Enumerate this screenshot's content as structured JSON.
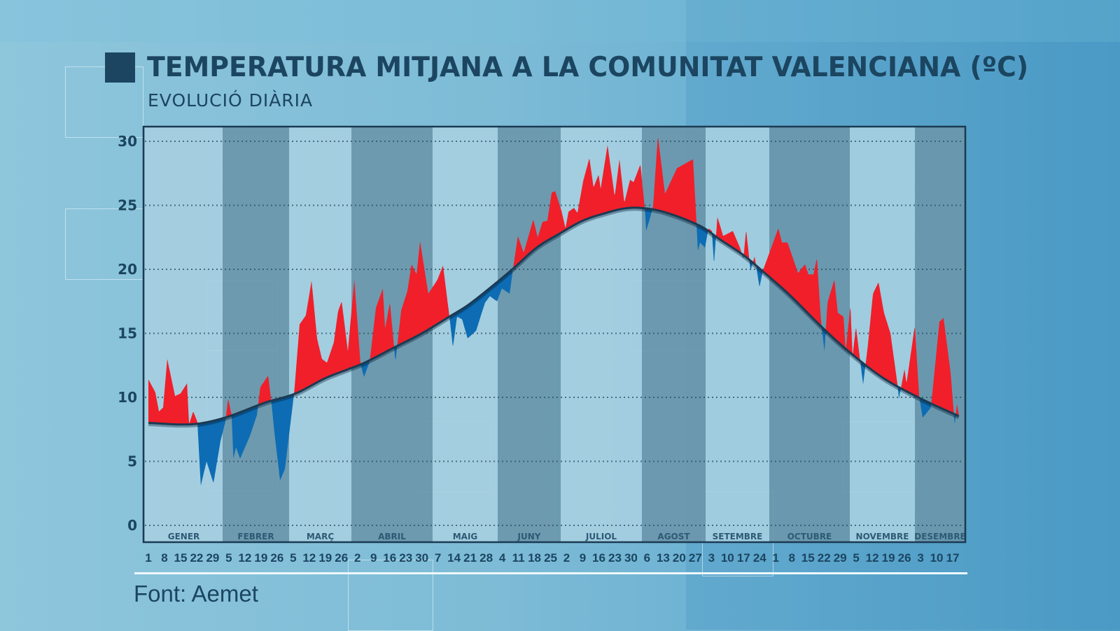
{
  "header": {
    "title": "TEMPERATURA MITJANA A LA COMUNITAT VALENCIANA (ºC)",
    "subtitle": "EVOLUCIÓ DIÀRIA"
  },
  "footer": {
    "source": "Font: Aemet"
  },
  "colors": {
    "above_normal": "#f01f2a",
    "below_normal": "#0d6cb3",
    "normal_line": "#1b3a52",
    "band_light": "#a6cfe1",
    "band_dark": "#6b97ab",
    "text": "#1b4560"
  },
  "chart_data": {
    "type": "area",
    "title": "TEMPERATURA MITJANA A LA COMUNITAT VALENCIANA (ºC)",
    "subtitle": "EVOLUCIÓ DIÀRIA",
    "xlabel": "",
    "ylabel": "",
    "ylim": [
      0,
      30
    ],
    "yticks": [
      0,
      5,
      10,
      15,
      20,
      25,
      30
    ],
    "grid": "horizontal-dotted",
    "x_unit": "day of year",
    "months": [
      "GENER",
      "FEBRER",
      "MARÇ",
      "ABRIL",
      "MAIG",
      "JUNY",
      "JULIOL",
      "AGOST",
      "SETEMBRE",
      "OCTUBRE",
      "NOVEMBRE",
      "DESEMBRE"
    ],
    "xtick_labels": [
      "1",
      "8",
      "15",
      "22",
      "29",
      "5",
      "12",
      "19",
      "26",
      "5",
      "12",
      "19",
      "26",
      "2",
      "9",
      "16",
      "23",
      "30",
      "7",
      "14",
      "21",
      "28",
      "4",
      "11",
      "18",
      "25",
      "2",
      "9",
      "16",
      "23",
      "30",
      "6",
      "13",
      "20",
      "27",
      "3",
      "10",
      "17",
      "24",
      "1",
      "8",
      "15",
      "22",
      "29",
      "5",
      "12",
      "19",
      "26",
      "3",
      "10",
      "17"
    ],
    "xtick_days": [
      1,
      8,
      15,
      22,
      29,
      36,
      43,
      50,
      57,
      64,
      71,
      78,
      85,
      92,
      99,
      106,
      113,
      120,
      127,
      134,
      141,
      148,
      155,
      162,
      169,
      176,
      183,
      190,
      197,
      204,
      211,
      218,
      225,
      232,
      239,
      246,
      253,
      260,
      267,
      274,
      281,
      288,
      295,
      302,
      309,
      316,
      323,
      330,
      337,
      344,
      351
    ],
    "series": [
      {
        "role": "observed daily mean",
        "points": [
          [
            1,
            11.4
          ],
          [
            4,
            10.4
          ],
          [
            5.6,
            8.9
          ],
          [
            7.4,
            9.2
          ],
          [
            9.2,
            13.0
          ],
          [
            12.6,
            10.1
          ],
          [
            15,
            10.3
          ],
          [
            17.8,
            11.1
          ],
          [
            18.7,
            7.9
          ],
          [
            20.5,
            8.9
          ],
          [
            22.3,
            8.1
          ],
          [
            23.8,
            3.1
          ],
          [
            26.3,
            5.0
          ],
          [
            29.3,
            3.3
          ],
          [
            32.4,
            6.6
          ],
          [
            34.5,
            8.1
          ],
          [
            35.7,
            9.9
          ],
          [
            37.2,
            8.6
          ],
          [
            38,
            5.2
          ],
          [
            39.1,
            6.1
          ],
          [
            40.9,
            5.2
          ],
          [
            45.2,
            7.0
          ],
          [
            48.2,
            8.6
          ],
          [
            49.7,
            10.8
          ],
          [
            53.1,
            11.7
          ],
          [
            54.6,
            9.5
          ],
          [
            55.8,
            7.3
          ],
          [
            58.3,
            3.5
          ],
          [
            60.4,
            4.4
          ],
          [
            64.4,
            10.3
          ],
          [
            66.8,
            15.7
          ],
          [
            69.5,
            16.4
          ],
          [
            72,
            19.1
          ],
          [
            74.4,
            14.6
          ],
          [
            76.5,
            13.0
          ],
          [
            78.7,
            12.7
          ],
          [
            81.7,
            14.3
          ],
          [
            83.5,
            16.7
          ],
          [
            85.1,
            17.5
          ],
          [
            87.8,
            13.6
          ],
          [
            90.6,
            19.2
          ],
          [
            93.3,
            12.6
          ],
          [
            94.8,
            11.6
          ],
          [
            97.3,
            12.8
          ],
          [
            100,
            17.0
          ],
          [
            103,
            18.5
          ],
          [
            104,
            15.4
          ],
          [
            106.1,
            17.4
          ],
          [
            108.5,
            12.8
          ],
          [
            111,
            16.8
          ],
          [
            113.7,
            18.3
          ],
          [
            115.5,
            20.4
          ],
          [
            117.7,
            19.6
          ],
          [
            119.2,
            22.2
          ],
          [
            122.8,
            18.1
          ],
          [
            126.8,
            19.2
          ],
          [
            129.2,
            20.3
          ],
          [
            132,
            16.3
          ],
          [
            133.5,
            13.9
          ],
          [
            135.3,
            16.3
          ],
          [
            137.5,
            16.1
          ],
          [
            139.9,
            14.6
          ],
          [
            143.6,
            15.2
          ],
          [
            145.7,
            16.4
          ],
          [
            147.5,
            17.4
          ],
          [
            149.6,
            17.9
          ],
          [
            152.7,
            17.5
          ],
          [
            154.8,
            18.5
          ],
          [
            158.2,
            18.1
          ],
          [
            159.7,
            20.1
          ],
          [
            161.8,
            22.6
          ],
          [
            164.3,
            21.3
          ],
          [
            168.5,
            23.9
          ],
          [
            170.4,
            22.5
          ],
          [
            172.5,
            23.7
          ],
          [
            174.6,
            23.8
          ],
          [
            176.5,
            26.0
          ],
          [
            178,
            26.1
          ],
          [
            180.7,
            24.6
          ],
          [
            182.5,
            23.2
          ],
          [
            183.8,
            24.5
          ],
          [
            186.2,
            24.8
          ],
          [
            187.7,
            24.4
          ],
          [
            190.2,
            26.9
          ],
          [
            192.9,
            28.7
          ],
          [
            194.7,
            26.4
          ],
          [
            196.9,
            27.4
          ],
          [
            197.8,
            26.3
          ],
          [
            200.8,
            29.7
          ],
          [
            203.9,
            25.7
          ],
          [
            206,
            28.6
          ],
          [
            208.1,
            25.2
          ],
          [
            210.6,
            27.0
          ],
          [
            212.1,
            26.8
          ],
          [
            215.1,
            28.2
          ],
          [
            217.1,
            24.6
          ],
          [
            217.6,
            23.0
          ],
          [
            219.1,
            23.9
          ],
          [
            220.6,
            24.9
          ],
          [
            222.7,
            30.4
          ],
          [
            225.8,
            25.9
          ],
          [
            231,
            27.9
          ],
          [
            234,
            28.2
          ],
          [
            238,
            28.6
          ],
          [
            239.5,
            23.6
          ],
          [
            240.1,
            21.4
          ],
          [
            241,
            22.1
          ],
          [
            243.2,
            21.7
          ],
          [
            244.7,
            23.2
          ],
          [
            246.2,
            23.0
          ],
          [
            247.1,
            20.4
          ],
          [
            248.6,
            24.1
          ],
          [
            251.1,
            22.6
          ],
          [
            255.3,
            23.0
          ],
          [
            258.4,
            21.7
          ],
          [
            259.9,
            20.8
          ],
          [
            261.1,
            23.1
          ],
          [
            263,
            19.9
          ],
          [
            264.8,
            21.0
          ],
          [
            266.9,
            18.6
          ],
          [
            268.4,
            19.9
          ],
          [
            275.1,
            23.2
          ],
          [
            276.7,
            22.1
          ],
          [
            279.1,
            22.1
          ],
          [
            283.7,
            19.7
          ],
          [
            286.7,
            20.4
          ],
          [
            288.2,
            19.6
          ],
          [
            290.4,
            19.6
          ],
          [
            291.9,
            20.9
          ],
          [
            293.7,
            15.9
          ],
          [
            295.2,
            13.6
          ],
          [
            296.5,
            17.4
          ],
          [
            299.5,
            19.2
          ],
          [
            301,
            16.6
          ],
          [
            303.5,
            16.3
          ],
          [
            304.4,
            13.6
          ],
          [
            306.5,
            17.2
          ],
          [
            307.4,
            13.2
          ],
          [
            308.9,
            15.5
          ],
          [
            312,
            11.0
          ],
          [
            314.1,
            14.1
          ],
          [
            316.3,
            18.1
          ],
          [
            318.7,
            19.0
          ],
          [
            321.1,
            16.6
          ],
          [
            323.9,
            15.0
          ],
          [
            326.9,
            11.1
          ],
          [
            327.6,
            9.9
          ],
          [
            330,
            12.2
          ],
          [
            330.9,
            11.1
          ],
          [
            334.5,
            15.6
          ],
          [
            336.4,
            10.1
          ],
          [
            337.9,
            8.4
          ],
          [
            341.5,
            9.2
          ],
          [
            345.2,
            15.9
          ],
          [
            347,
            16.2
          ],
          [
            350.1,
            11.9
          ],
          [
            351.9,
            7.8
          ],
          [
            352.8,
            9.5
          ],
          [
            353.6,
            8.7
          ]
        ]
      },
      {
        "role": "normal",
        "points": [
          [
            1,
            8.0
          ],
          [
            20,
            7.9
          ],
          [
            34,
            8.4
          ],
          [
            52,
            9.6
          ],
          [
            65,
            10.3
          ],
          [
            78,
            11.5
          ],
          [
            88,
            12.2
          ],
          [
            95,
            12.7
          ],
          [
            108,
            13.9
          ],
          [
            120,
            15.0
          ],
          [
            131,
            16.2
          ],
          [
            140,
            17.2
          ],
          [
            150,
            18.6
          ],
          [
            160,
            20.1
          ],
          [
            170,
            21.7
          ],
          [
            180,
            22.8
          ],
          [
            190,
            23.8
          ],
          [
            200,
            24.4
          ],
          [
            208,
            24.75
          ],
          [
            215,
            24.8
          ],
          [
            225,
            24.5
          ],
          [
            241,
            23.4
          ],
          [
            250,
            22.3
          ],
          [
            260,
            21.1
          ],
          [
            268,
            19.9
          ],
          [
            280,
            18.0
          ],
          [
            294,
            15.5
          ],
          [
            305,
            13.7
          ],
          [
            320,
            11.6
          ],
          [
            336,
            10.0
          ],
          [
            354,
            8.5
          ]
        ]
      }
    ]
  }
}
